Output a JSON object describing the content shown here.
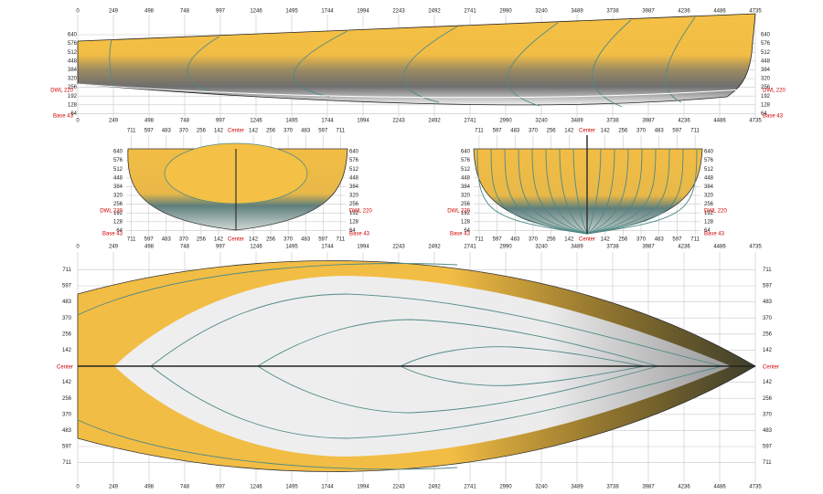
{
  "x_scale": [
    "0",
    "249",
    "498",
    "748",
    "997",
    "1246",
    "1495",
    "1744",
    "1994",
    "2243",
    "2492",
    "2741",
    "2990",
    "3240",
    "3489",
    "3738",
    "3987",
    "4236",
    "4486",
    "4735"
  ],
  "heights": [
    "640",
    "576",
    "512",
    "448",
    "384",
    "320",
    "256",
    "192",
    "128",
    "64"
  ],
  "dwl": "DWL 220",
  "base": "Base 43",
  "center": "Center",
  "half_breadths": [
    "711",
    "597",
    "483",
    "370",
    "256",
    "142"
  ]
}
